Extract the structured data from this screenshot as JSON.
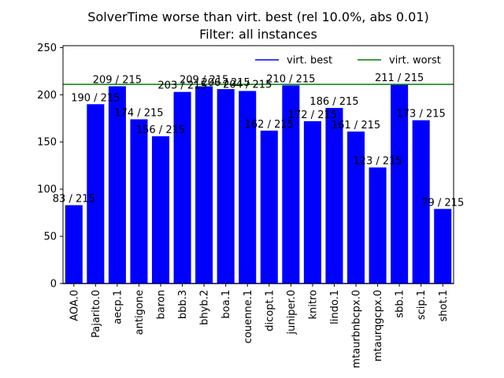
{
  "chart_data": {
    "type": "bar",
    "title": "SolverTime worse than virt. best (rel 10.0%, abs 0.01)",
    "subtitle": "Filter: all instances",
    "xlabel": "",
    "ylabel": "",
    "ylim": [
      0,
      252
    ],
    "yticks": [
      0,
      50,
      100,
      150,
      200,
      250
    ],
    "categories": [
      "AOA.0",
      "Pajarito.0",
      "aecp.1",
      "antigone",
      "baron",
      "bbb.3",
      "bhyb.2",
      "boa.1",
      "couenne.1",
      "dicopt.1",
      "juniper.0",
      "knitro",
      "lindo.1",
      "mtaurbnbcpx.0",
      "mtaurqgcpx.0",
      "sbb.1",
      "scip.1",
      "shot.1"
    ],
    "values": [
      83,
      190,
      209,
      174,
      156,
      203,
      209,
      206,
      204,
      162,
      210,
      172,
      186,
      161,
      123,
      211,
      173,
      79
    ],
    "labels": [
      "83 / 215",
      "190 / 215",
      "209 / 215",
      "174 / 215",
      "156 / 215",
      "203 / 215",
      "209 / 215",
      "206 / 215",
      "204 / 215",
      "162 / 215",
      "210 / 215",
      "172 / 215",
      "186 / 215",
      "161 / 215",
      "123 / 215",
      "211 / 215",
      "173 / 215",
      "79 / 215"
    ],
    "bar_color": "#0000ff",
    "reference_lines": [
      {
        "name": "virt. best",
        "value": 0,
        "color": "#0000ff"
      },
      {
        "name": "virt. worst",
        "value": 211,
        "color": "#008000"
      }
    ],
    "legend_position": "top-right",
    "grid": false
  }
}
